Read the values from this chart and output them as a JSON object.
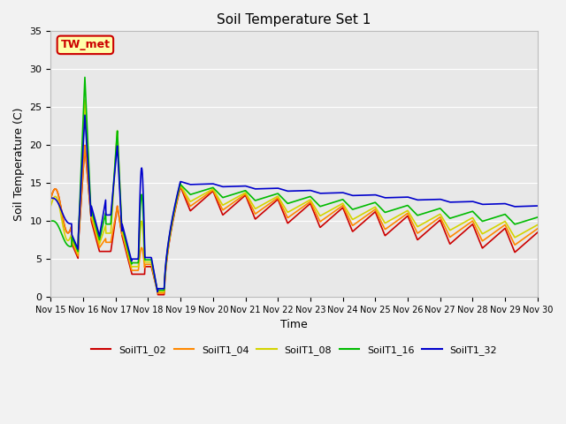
{
  "title": "Soil Temperature Set 1",
  "xlabel": "Time",
  "ylabel": "Soil Temperature (C)",
  "ylim": [
    0,
    35
  ],
  "xlim": [
    0,
    15
  ],
  "plot_bg": "#e8e8e8",
  "fig_bg": "#f2f2f2",
  "series_colors": {
    "SoilT1_02": "#cc0000",
    "SoilT1_04": "#ff8800",
    "SoilT1_08": "#d4d400",
    "SoilT1_16": "#00bb00",
    "SoilT1_32": "#0000cc"
  },
  "xtick_labels": [
    "Nov 15",
    "Nov 16",
    "Nov 17",
    "Nov 18",
    "Nov 19",
    "Nov 20",
    "Nov 21",
    "Nov 22",
    "Nov 23",
    "Nov 24",
    "Nov 25",
    "Nov 26",
    "Nov 27",
    "Nov 28",
    "Nov 29",
    "Nov 30"
  ],
  "ytick_vals": [
    0,
    5,
    10,
    15,
    20,
    25,
    30,
    35
  ],
  "annotation_text": "TW_met",
  "annotation_bg": "#ffffaa",
  "annotation_border": "#cc0000",
  "grid_color": "#ffffff",
  "linewidth": 1.2
}
